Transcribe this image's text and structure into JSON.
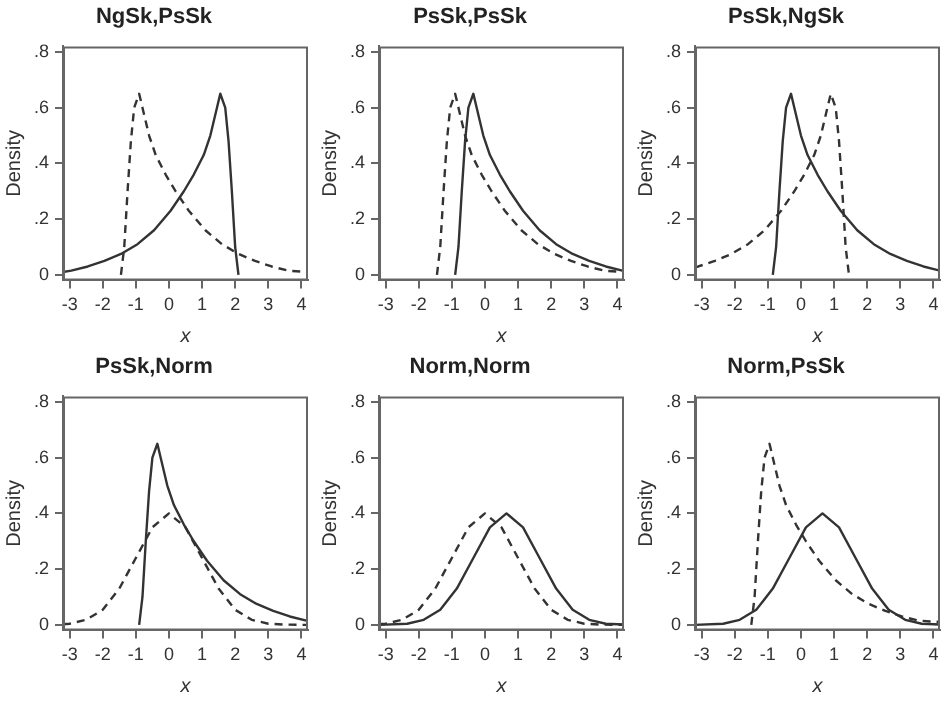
{
  "chart_data": [
    {
      "type": "line",
      "title": "NgSk,PsSk",
      "xlabel": "x",
      "ylabel": "Density",
      "xlim": [
        -3.2,
        4.2
      ],
      "xticks": [
        -3,
        -2,
        -1,
        0,
        1,
        2,
        3,
        4
      ],
      "ylim": [
        -0.02,
        0.82
      ],
      "yticks": [
        {
          "value": 0,
          "label": "0"
        },
        {
          "value": 0.2,
          "label": ".2"
        },
        {
          "value": 0.4,
          "label": ".4"
        },
        {
          "value": 0.6,
          "label": ".6"
        },
        {
          "value": 0.8,
          "label": ".8"
        }
      ],
      "grid": false,
      "series": [
        {
          "color": "#333333",
          "line_style": "solid",
          "x": [
            -3.2,
            -2.95,
            -2.45,
            -1.95,
            -1.45,
            -0.95,
            -0.45,
            0.05,
            0.45,
            0.75,
            1.05,
            1.25,
            1.45,
            1.55,
            1.7,
            1.8,
            1.9,
            2.0,
            2.1
          ],
          "values": [
            0.01,
            0.015,
            0.03,
            0.05,
            0.075,
            0.11,
            0.16,
            0.23,
            0.3,
            0.36,
            0.43,
            0.5,
            0.6,
            0.65,
            0.6,
            0.48,
            0.3,
            0.1,
            0
          ]
        },
        {
          "color": "#333333",
          "line_style": "dashed",
          "x": [
            -1.45,
            -1.35,
            -1.25,
            -1.15,
            -1.05,
            -0.9,
            -0.8,
            -0.6,
            -0.4,
            -0.1,
            0.2,
            0.6,
            1.1,
            1.6,
            2.1,
            2.6,
            3.1,
            3.6,
            4.2
          ],
          "values": [
            0,
            0.1,
            0.3,
            0.48,
            0.6,
            0.65,
            0.6,
            0.5,
            0.43,
            0.36,
            0.3,
            0.23,
            0.16,
            0.11,
            0.075,
            0.05,
            0.03,
            0.015,
            0.01
          ]
        }
      ]
    },
    {
      "type": "line",
      "title": "PsSk,PsSk",
      "xlabel": "x",
      "ylabel": "Density",
      "xlim": [
        -3.2,
        4.2
      ],
      "xticks": [
        -3,
        -2,
        -1,
        0,
        1,
        2,
        3,
        4
      ],
      "ylim": [
        -0.02,
        0.82
      ],
      "yticks": [
        {
          "value": 0,
          "label": "0"
        },
        {
          "value": 0.2,
          "label": ".2"
        },
        {
          "value": 0.4,
          "label": ".4"
        },
        {
          "value": 0.6,
          "label": ".6"
        },
        {
          "value": 0.8,
          "label": ".8"
        }
      ],
      "grid": false,
      "series": [
        {
          "color": "#333333",
          "line_style": "solid",
          "x": [
            -0.9,
            -0.8,
            -0.7,
            -0.6,
            -0.5,
            -0.35,
            -0.25,
            -0.05,
            0.15,
            0.45,
            0.75,
            1.15,
            1.65,
            2.15,
            2.65,
            3.15,
            3.65,
            4.15
          ],
          "values": [
            0,
            0.1,
            0.3,
            0.48,
            0.6,
            0.65,
            0.6,
            0.5,
            0.43,
            0.36,
            0.3,
            0.23,
            0.16,
            0.11,
            0.075,
            0.05,
            0.03,
            0.015
          ]
        },
        {
          "color": "#333333",
          "line_style": "dashed",
          "x": [
            -1.45,
            -1.35,
            -1.25,
            -1.15,
            -1.05,
            -0.9,
            -0.8,
            -0.6,
            -0.4,
            -0.1,
            0.2,
            0.6,
            1.1,
            1.6,
            2.1,
            2.6,
            3.1,
            3.6,
            4.2
          ],
          "values": [
            0,
            0.1,
            0.3,
            0.48,
            0.6,
            0.65,
            0.6,
            0.5,
            0.43,
            0.36,
            0.3,
            0.23,
            0.16,
            0.11,
            0.075,
            0.05,
            0.03,
            0.015,
            0.01
          ]
        }
      ]
    },
    {
      "type": "line",
      "title": "PsSk,NgSk",
      "xlabel": "x",
      "ylabel": "Density",
      "xlim": [
        -3.2,
        4.2
      ],
      "xticks": [
        -3,
        -2,
        -1,
        0,
        1,
        2,
        3,
        4
      ],
      "ylim": [
        -0.02,
        0.82
      ],
      "yticks": [
        {
          "value": 0,
          "label": "0"
        },
        {
          "value": 0.2,
          "label": ".2"
        },
        {
          "value": 0.4,
          "label": ".4"
        },
        {
          "value": 0.6,
          "label": ".6"
        },
        {
          "value": 0.8,
          "label": ".8"
        }
      ],
      "grid": false,
      "series": [
        {
          "color": "#333333",
          "line_style": "solid",
          "x": [
            -0.85,
            -0.75,
            -0.65,
            -0.55,
            -0.45,
            -0.3,
            -0.2,
            0,
            0.2,
            0.5,
            0.8,
            1.2,
            1.7,
            2.2,
            2.7,
            3.2,
            3.7,
            4.2
          ],
          "values": [
            0,
            0.1,
            0.3,
            0.48,
            0.6,
            0.65,
            0.6,
            0.5,
            0.43,
            0.36,
            0.3,
            0.23,
            0.16,
            0.11,
            0.075,
            0.05,
            0.03,
            0.015
          ]
        },
        {
          "color": "#333333",
          "line_style": "dashed",
          "x": [
            -3.2,
            -3.1,
            -2.6,
            -2.1,
            -1.6,
            -1.1,
            -0.6,
            -0.2,
            0.1,
            0.4,
            0.6,
            0.8,
            0.9,
            1.05,
            1.15,
            1.25,
            1.35,
            1.45
          ],
          "values": [
            0.027,
            0.03,
            0.05,
            0.075,
            0.11,
            0.16,
            0.23,
            0.3,
            0.36,
            0.43,
            0.5,
            0.6,
            0.65,
            0.6,
            0.48,
            0.3,
            0.1,
            0
          ]
        }
      ]
    },
    {
      "type": "line",
      "title": "PsSk,Norm",
      "xlabel": "x",
      "ylabel": "Density",
      "xlim": [
        -3.2,
        4.2
      ],
      "xticks": [
        -3,
        -2,
        -1,
        0,
        1,
        2,
        3,
        4
      ],
      "ylim": [
        -0.02,
        0.82
      ],
      "yticks": [
        {
          "value": 0,
          "label": "0"
        },
        {
          "value": 0.2,
          "label": ".2"
        },
        {
          "value": 0.4,
          "label": ".4"
        },
        {
          "value": 0.6,
          "label": ".6"
        },
        {
          "value": 0.8,
          "label": ".8"
        }
      ],
      "grid": false,
      "series": [
        {
          "color": "#333333",
          "line_style": "solid",
          "x": [
            -0.9,
            -0.8,
            -0.7,
            -0.6,
            -0.5,
            -0.35,
            -0.25,
            -0.05,
            0.15,
            0.45,
            0.75,
            1.15,
            1.65,
            2.15,
            2.65,
            3.15,
            3.65,
            4.15
          ],
          "values": [
            0,
            0.1,
            0.3,
            0.48,
            0.6,
            0.65,
            0.6,
            0.5,
            0.43,
            0.36,
            0.3,
            0.23,
            0.16,
            0.11,
            0.075,
            0.05,
            0.03,
            0.015
          ]
        },
        {
          "color": "#333333",
          "line_style": "dashed",
          "x": [
            -3.2,
            -3,
            -2.5,
            -2,
            -1.5,
            -1,
            -0.5,
            0,
            0.5,
            1,
            1.5,
            2,
            2.5,
            3,
            3.5,
            4,
            4.2
          ],
          "values": [
            0.002,
            0.004,
            0.018,
            0.054,
            0.13,
            0.24,
            0.35,
            0.4,
            0.35,
            0.24,
            0.13,
            0.054,
            0.018,
            0.004,
            0.001,
            0,
            0
          ]
        }
      ]
    },
    {
      "type": "line",
      "title": "Norm,Norm",
      "xlabel": "x",
      "ylabel": "Density",
      "xlim": [
        -3.2,
        4.2
      ],
      "xticks": [
        -3,
        -2,
        -1,
        0,
        1,
        2,
        3,
        4
      ],
      "ylim": [
        -0.02,
        0.82
      ],
      "yticks": [
        {
          "value": 0,
          "label": "0"
        },
        {
          "value": 0.2,
          "label": ".2"
        },
        {
          "value": 0.4,
          "label": ".4"
        },
        {
          "value": 0.6,
          "label": ".6"
        },
        {
          "value": 0.8,
          "label": ".8"
        }
      ],
      "grid": false,
      "series": [
        {
          "color": "#333333",
          "line_style": "solid",
          "x": [
            -3.2,
            -2.35,
            -1.85,
            -1.35,
            -0.85,
            -0.35,
            0.15,
            0.65,
            1.15,
            1.65,
            2.15,
            2.65,
            3.15,
            3.65,
            4.2
          ],
          "values": [
            0,
            0.004,
            0.018,
            0.054,
            0.13,
            0.24,
            0.35,
            0.4,
            0.35,
            0.24,
            0.13,
            0.054,
            0.018,
            0.004,
            0.001
          ]
        },
        {
          "color": "#333333",
          "line_style": "dashed",
          "x": [
            -3.2,
            -3,
            -2.5,
            -2,
            -1.5,
            -1,
            -0.5,
            0,
            0.5,
            1,
            1.5,
            2,
            2.5,
            3,
            3.5,
            4,
            4.2
          ],
          "values": [
            0.002,
            0.004,
            0.018,
            0.054,
            0.13,
            0.24,
            0.35,
            0.4,
            0.35,
            0.24,
            0.13,
            0.054,
            0.018,
            0.004,
            0.001,
            0,
            0
          ]
        }
      ]
    },
    {
      "type": "line",
      "title": "Norm,PsSk",
      "xlabel": "x",
      "ylabel": "Density",
      "xlim": [
        -3.2,
        4.2
      ],
      "xticks": [
        -3,
        -2,
        -1,
        0,
        1,
        2,
        3,
        4
      ],
      "ylim": [
        -0.02,
        0.82
      ],
      "yticks": [
        {
          "value": 0,
          "label": "0"
        },
        {
          "value": 0.2,
          "label": ".2"
        },
        {
          "value": 0.4,
          "label": ".4"
        },
        {
          "value": 0.6,
          "label": ".6"
        },
        {
          "value": 0.8,
          "label": ".8"
        }
      ],
      "grid": false,
      "series": [
        {
          "color": "#333333",
          "line_style": "solid",
          "x": [
            -3.2,
            -2.35,
            -1.85,
            -1.35,
            -0.85,
            -0.35,
            0.15,
            0.65,
            1.15,
            1.65,
            2.15,
            2.65,
            3.15,
            3.65,
            4.2
          ],
          "values": [
            0,
            0.004,
            0.018,
            0.054,
            0.13,
            0.24,
            0.35,
            0.4,
            0.35,
            0.24,
            0.13,
            0.054,
            0.018,
            0.004,
            0.001
          ]
        },
        {
          "color": "#333333",
          "line_style": "dashed",
          "x": [
            -1.5,
            -1.4,
            -1.3,
            -1.2,
            -1.1,
            -0.95,
            -0.85,
            -0.65,
            -0.45,
            -0.15,
            0.15,
            0.55,
            1.05,
            1.55,
            2.05,
            2.55,
            3.05,
            3.55,
            4.2
          ],
          "values": [
            0,
            0.1,
            0.3,
            0.48,
            0.6,
            0.65,
            0.6,
            0.5,
            0.43,
            0.36,
            0.3,
            0.23,
            0.16,
            0.11,
            0.075,
            0.05,
            0.03,
            0.015,
            0.01
          ]
        }
      ]
    }
  ]
}
